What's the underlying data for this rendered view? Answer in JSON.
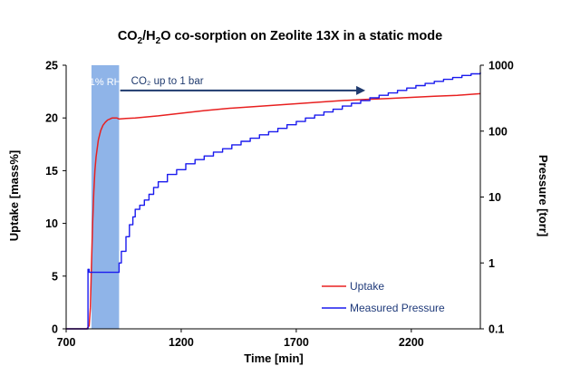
{
  "chart_data": {
    "type": "line",
    "title": "CO2/H2O co-sorption on Zeolite 13X in a static mode",
    "title_parts": {
      "prefix": "CO",
      "sub1": "2",
      "mid": "/H",
      "sub2": "2",
      "suffix": "O co-sorption on Zeolite 13X in a static mode"
    },
    "xlabel": "Time [min]",
    "ylabel_left": "Uptake [mass%]",
    "ylabel_right": "Pressure [torr]",
    "xlim": [
      700,
      2500
    ],
    "ylim_left": [
      0,
      25
    ],
    "ylim_right": [
      0.1,
      1000
    ],
    "y_right_scale": "log",
    "xticks": [
      700,
      1200,
      1700,
      2200
    ],
    "yticks_left": [
      0,
      5,
      10,
      15,
      20,
      25
    ],
    "yticks_right": [
      {
        "value": 0.1,
        "label": "0.1"
      },
      {
        "value": 1,
        "label": "1"
      },
      {
        "value": 10,
        "label": "10"
      },
      {
        "value": 100,
        "label": "100"
      },
      {
        "value": 1000,
        "label": "1000"
      }
    ],
    "grid": false,
    "legend_position": "bottom-right",
    "annotations": {
      "band": {
        "x_start": 810,
        "x_end": 930,
        "color": "#8fb4e8",
        "label": "1% RH"
      },
      "arrow": {
        "x_start": 935,
        "x_end": 2000,
        "y_left": 22.6,
        "label": "CO₂ up to 1 bar"
      }
    },
    "series": [
      {
        "name": "Uptake",
        "axis": "left",
        "color": "#e82020",
        "x": [
          700,
          790,
          800,
          805,
          810,
          815,
          820,
          825,
          830,
          840,
          850,
          860,
          870,
          880,
          890,
          900,
          910,
          920,
          930,
          960,
          1000,
          1100,
          1200,
          1300,
          1400,
          1500,
          1600,
          1700,
          1800,
          1900,
          2000,
          2100,
          2200,
          2300,
          2400,
          2500
        ],
        "values": [
          0,
          0,
          0.3,
          2,
          6,
          10,
          13,
          15,
          16.3,
          17.9,
          18.8,
          19.3,
          19.6,
          19.8,
          19.9,
          20.0,
          20.0,
          20.0,
          19.9,
          19.95,
          20.0,
          20.2,
          20.45,
          20.7,
          20.9,
          21.05,
          21.2,
          21.35,
          21.5,
          21.65,
          21.75,
          21.85,
          21.95,
          22.05,
          22.15,
          22.3
        ]
      },
      {
        "name": "Measured Pressure",
        "axis": "right",
        "color": "#1a1aee",
        "x": [
          700,
          790,
          795,
          800,
          810,
          880,
          925,
          928,
          930,
          940,
          960,
          975,
          990,
          1000,
          1020,
          1040,
          1060,
          1080,
          1100,
          1140,
          1180,
          1220,
          1260,
          1300,
          1340,
          1380,
          1420,
          1460,
          1500,
          1540,
          1580,
          1620,
          1660,
          1700,
          1740,
          1780,
          1820,
          1860,
          1900,
          1940,
          1980,
          2020,
          2060,
          2100,
          2140,
          2180,
          2220,
          2260,
          2300,
          2340,
          2380,
          2420,
          2460,
          2500
        ],
        "values": [
          0.1,
          0.1,
          0.8,
          0.72,
          0.72,
          0.72,
          0.72,
          0.72,
          1.0,
          1.5,
          2.5,
          3.8,
          5.0,
          6.5,
          7.5,
          9.0,
          11.0,
          14.0,
          17.0,
          22.0,
          26.0,
          32.0,
          37.0,
          42.0,
          48.0,
          54.0,
          62.0,
          70.0,
          78.0,
          88.0,
          98.0,
          110.0,
          125.0,
          140.0,
          158.0,
          175.0,
          195.0,
          215.0,
          240.0,
          265.0,
          290.0,
          320.0,
          350.0,
          380.0,
          415.0,
          450.0,
          490.0,
          530.0,
          570.0,
          610.0,
          650.0,
          700.0,
          740.0,
          780.0
        ]
      }
    ]
  }
}
